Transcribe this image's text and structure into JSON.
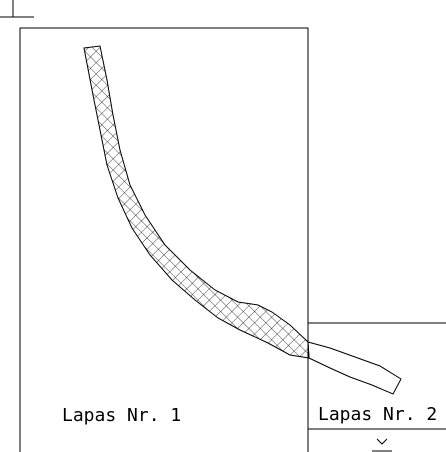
{
  "sheets": [
    {
      "label": "Lapas Nr. 1"
    },
    {
      "label": "Lapas Nr. 2"
    }
  ],
  "colors": {
    "line": "#000000",
    "background": "#ffffff"
  }
}
